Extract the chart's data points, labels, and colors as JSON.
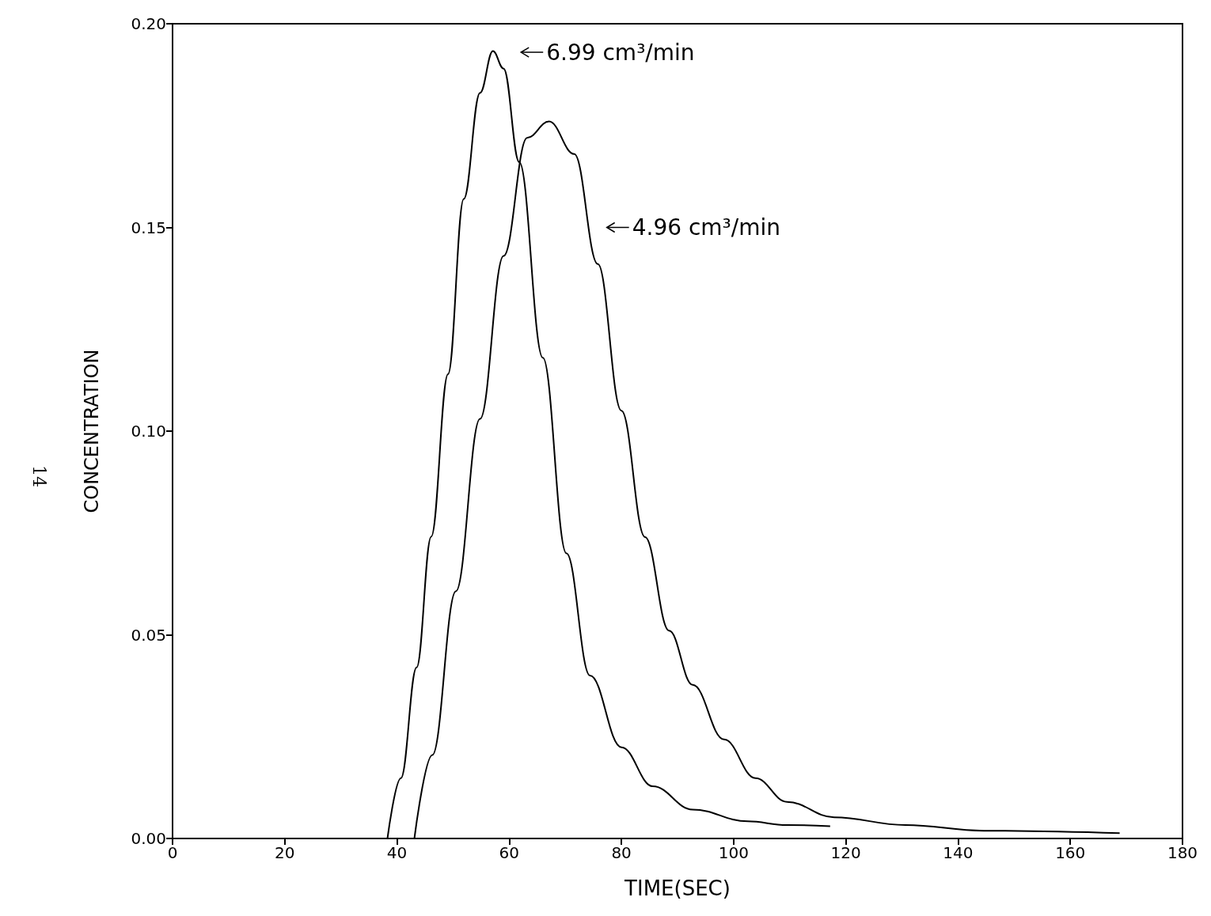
{
  "chart_data": {
    "type": "line",
    "xlabel": "TIME(SEC)",
    "ylabel": "CONCENTRATION",
    "xlim": [
      0,
      180
    ],
    "xticks": [
      0,
      20,
      40,
      60,
      80,
      100,
      120,
      140,
      160,
      180
    ],
    "ylim": [
      0,
      0.2
    ],
    "yticks": [
      {
        "value": 0,
        "label": "0.00"
      },
      {
        "value": 0.05,
        "label": "0.05"
      },
      {
        "value": 0.1,
        "label": "0.10"
      },
      {
        "value": 0.15,
        "label": "0.15"
      },
      {
        "value": 0.2,
        "label": "0.20"
      }
    ],
    "grid": false,
    "marker": "none",
    "line_style": "solid",
    "series": [
      {
        "color": "#000000",
        "x": [
          38.3,
          40.7,
          43.5,
          46.1,
          49.1,
          51.9,
          54.8,
          57.1,
          59.0,
          61.8,
          66.0,
          70.2,
          74.4,
          80.0,
          85.6,
          92.7,
          102.5,
          109.5,
          117.2
        ],
        "values": [
          0,
          0.0148,
          0.042,
          0.0741,
          0.114,
          0.157,
          0.183,
          0.1933,
          0.189,
          0.166,
          0.118,
          0.07,
          0.04,
          0.0224,
          0.0128,
          0.0071,
          0.0042,
          0.0033,
          0.003
        ]
      },
      {
        "color": "#000000",
        "x": [
          43.1,
          46.3,
          50.5,
          54.8,
          59.0,
          63.2,
          67.1,
          71.6,
          75.8,
          80.0,
          84.2,
          88.5,
          92.7,
          98.3,
          103.9,
          109.5,
          117.9,
          130.6,
          144.6,
          168.8
        ],
        "values": [
          0,
          0.0205,
          0.0607,
          0.103,
          0.143,
          0.172,
          0.176,
          0.168,
          0.141,
          0.105,
          0.074,
          0.051,
          0.0377,
          0.0243,
          0.0148,
          0.009,
          0.0052,
          0.0033,
          0.0019,
          0.0013
        ]
      }
    ],
    "annotations": [
      "6.99 cm³/min",
      "4.96 cm³/min",
      "14"
    ]
  }
}
